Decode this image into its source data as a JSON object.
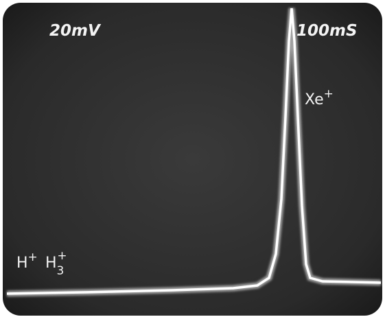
{
  "screen": {
    "volts_per_div": "20mV",
    "time_per_div": "100mS",
    "peaks": [
      {
        "base": "Xe",
        "sup": "+"
      },
      {
        "base": "H",
        "sup": "+"
      },
      {
        "base": "H",
        "sub": "3",
        "sup": "+"
      }
    ]
  }
}
